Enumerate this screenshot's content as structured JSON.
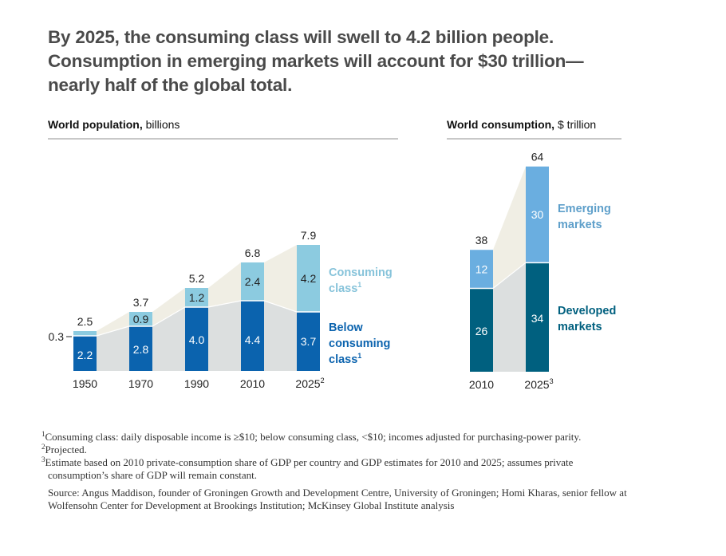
{
  "headline": {
    "line1": "By 2025, the consuming class will swell to 4.2 billion people.",
    "line2": "Consumption in emerging markets will account for $30 trillion—",
    "line3": "nearly half of the global total."
  },
  "colors": {
    "below_consuming": "#0b63ae",
    "consuming": "#8ccbe0",
    "consuming_label": "#86c3da",
    "below_label": "#0b63ae",
    "emerging": "#6aaee0",
    "emerging_label": "#5e9fca",
    "developed": "#00607f",
    "developed_label": "#00607f",
    "area_upper": "#f0eee4",
    "area_lower": "#dcdfdf",
    "headline": "#4a4a4a"
  },
  "chart_data": [
    {
      "type": "bar",
      "stacked": true,
      "title_bold": "World population,",
      "title_rest": " billions",
      "categories": [
        "1950",
        "1970",
        "1990",
        "2010",
        "2025"
      ],
      "category_superscripts": [
        "",
        "",
        "",
        "",
        "2"
      ],
      "series": [
        {
          "name": "Below consuming class",
          "label_lines": [
            "Below",
            "consuming",
            "class"
          ],
          "superscript": "1",
          "values": [
            2.2,
            2.8,
            4.0,
            4.4,
            3.7
          ],
          "value_labels": [
            "2.2",
            "2.8",
            "4.0",
            "4.4",
            "3.7"
          ]
        },
        {
          "name": "Consuming class",
          "label_lines": [
            "Consuming",
            "class"
          ],
          "superscript": "1",
          "values": [
            0.3,
            0.9,
            1.2,
            2.4,
            4.2
          ],
          "value_labels": [
            "0.3",
            "0.9",
            "1.2",
            "2.4",
            "4.2"
          ]
        }
      ],
      "totals": [
        2.5,
        3.7,
        5.2,
        6.8,
        7.9
      ],
      "total_labels": [
        "2.5",
        "3.7",
        "5.2",
        "6.8",
        "7.9"
      ],
      "ylim": [
        0,
        8
      ],
      "grid": false,
      "legend": "right"
    },
    {
      "type": "bar",
      "stacked": true,
      "title_bold": "World consumption,",
      "title_rest": " $ trillion",
      "categories": [
        "2010",
        "2025"
      ],
      "category_superscripts": [
        "",
        "3"
      ],
      "series": [
        {
          "name": "Developed markets",
          "label_lines": [
            "Developed",
            "markets"
          ],
          "values": [
            26,
            34
          ],
          "value_labels": [
            "26",
            "34"
          ]
        },
        {
          "name": "Emerging markets",
          "label_lines": [
            "Emerging",
            "markets"
          ],
          "values": [
            12,
            30
          ],
          "value_labels": [
            "12",
            "30"
          ]
        }
      ],
      "totals": [
        38,
        64
      ],
      "total_labels": [
        "38",
        "64"
      ],
      "ylim": [
        0,
        64
      ],
      "grid": false,
      "legend": "right"
    }
  ],
  "footnotes": [
    {
      "sup": "1",
      "text": "Consuming class: daily disposable income is ≥$10; below consuming class, <$10; incomes adjusted for purchasing-power parity."
    },
    {
      "sup": "2",
      "text": "Projected."
    },
    {
      "sup": "3",
      "text": "Estimate based on 2010 private-consumption share of GDP per country and GDP estimates for 2010 and 2025; assumes private",
      "cont": "consumption’s share of GDP will remain constant."
    }
  ],
  "source": {
    "line1": "Source: Angus Maddison, founder of Groningen Growth and Development Centre, University of Groningen; Homi Kharas, senior fellow at",
    "line2": "Wolfensohn Center for Development at Brookings Institution; McKinsey Global Institute analysis"
  }
}
